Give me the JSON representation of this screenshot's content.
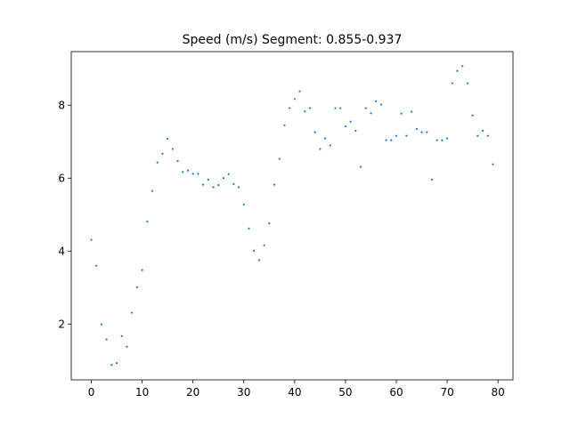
{
  "chart_data": {
    "type": "scatter",
    "title": "Speed (m/s) Segment: 0.855-0.937",
    "xlabel": "",
    "ylabel": "",
    "xlim": [
      -3.95,
      82.95
    ],
    "ylim": [
      0.47,
      9.47
    ],
    "xticks": [
      0,
      10,
      20,
      30,
      40,
      50,
      60,
      70,
      80
    ],
    "yticks": [
      2,
      4,
      6,
      8
    ],
    "grid": false,
    "marker_color": "#1f77b4",
    "series": [
      {
        "x": [
          0,
          1,
          2,
          3,
          4,
          5,
          6,
          7,
          8,
          9,
          10,
          11,
          12,
          13,
          14,
          15,
          16,
          17,
          18,
          19,
          20,
          21,
          22,
          23,
          24,
          25,
          26,
          27,
          28,
          29,
          30,
          31,
          32,
          33,
          34,
          35,
          36,
          37,
          38,
          39,
          40,
          41,
          42,
          43,
          44,
          45,
          46,
          47,
          48,
          49,
          50,
          51,
          52,
          53,
          54,
          55,
          56,
          57,
          58,
          59,
          60,
          61,
          62,
          63,
          64,
          65,
          66,
          67,
          68,
          69,
          70,
          71,
          72,
          73,
          74,
          75,
          76,
          77,
          78,
          79
        ],
        "y": [
          4.31,
          3.6,
          1.99,
          1.58,
          0.88,
          0.93,
          1.67,
          1.38,
          2.31,
          3.01,
          3.48,
          4.81,
          5.65,
          6.43,
          6.67,
          7.08,
          6.8,
          6.47,
          6.17,
          6.21,
          6.12,
          6.12,
          5.82,
          5.96,
          5.75,
          5.81,
          6.0,
          6.11,
          5.84,
          5.75,
          5.28,
          4.62,
          4.01,
          3.75,
          4.16,
          4.76,
          5.82,
          6.53,
          7.45,
          7.92,
          8.17,
          8.38,
          7.83,
          7.92,
          7.26,
          6.8,
          7.09,
          6.9,
          7.92,
          7.92,
          7.42,
          7.55,
          7.3,
          6.31,
          7.92,
          7.78,
          8.11,
          8.02,
          7.04,
          7.04,
          7.16,
          7.77,
          7.16,
          7.82,
          7.35,
          7.26,
          7.26,
          5.96,
          7.04,
          7.04,
          7.09,
          8.6,
          8.94,
          9.07,
          8.6,
          7.72,
          7.16,
          7.3,
          7.16,
          6.38
        ]
      }
    ]
  }
}
